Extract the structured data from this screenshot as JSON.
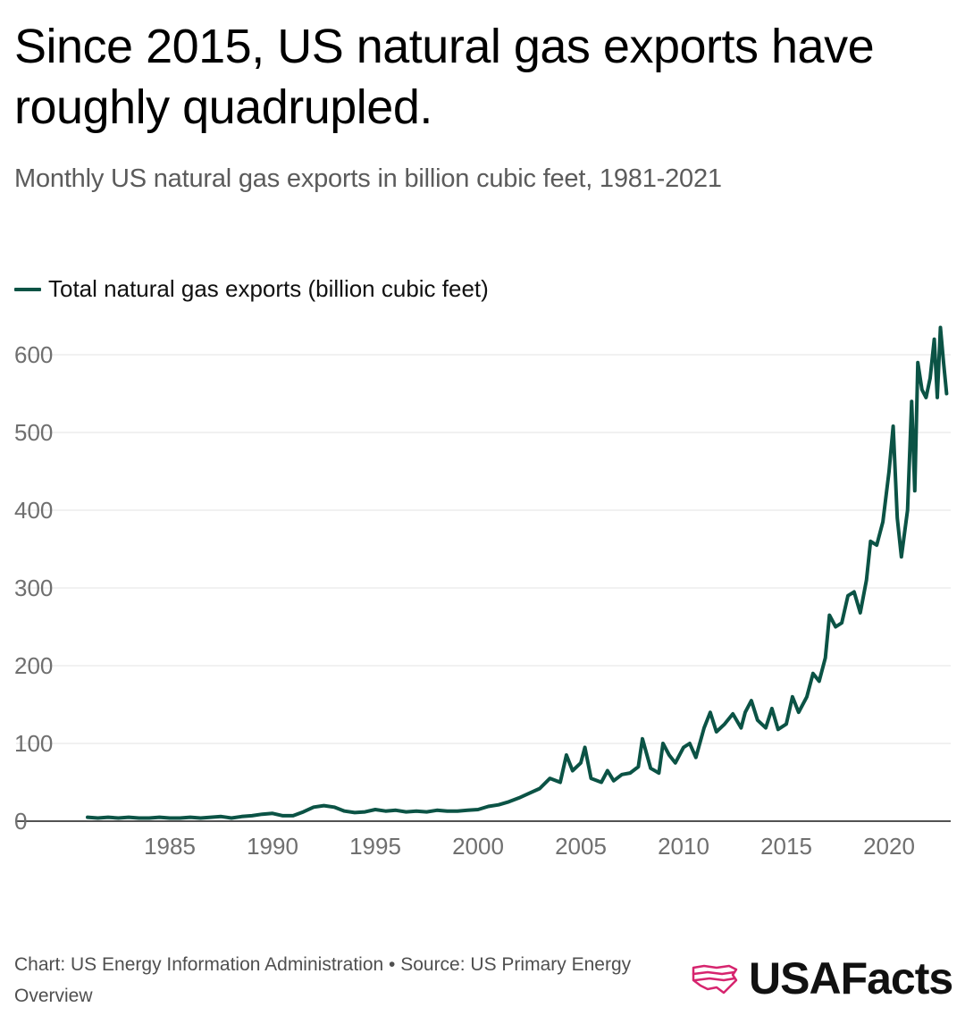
{
  "title": "Since 2015, US natural gas exports have roughly quadrupled.",
  "subtitle": "Monthly US natural gas exports in billion cubic feet, 1981-2021",
  "footer": "Chart: US Energy Information Administration • Source: US Primary Energy Overview",
  "brand": "USAFacts",
  "colors": {
    "line": "#0b5345",
    "grid": "#e3e3e3",
    "tick": "#6f6f6f",
    "logo": "#d6246e"
  },
  "chart_data": {
    "type": "line",
    "series": [
      {
        "name": "Total natural gas exports (billion cubic feet)",
        "points": [
          [
            1981.0,
            5
          ],
          [
            1981.5,
            4
          ],
          [
            1982.0,
            5
          ],
          [
            1982.5,
            4
          ],
          [
            1983.0,
            5
          ],
          [
            1983.5,
            4
          ],
          [
            1984.0,
            4
          ],
          [
            1984.5,
            5
          ],
          [
            1985.0,
            4
          ],
          [
            1985.5,
            4
          ],
          [
            1986.0,
            5
          ],
          [
            1986.5,
            4
          ],
          [
            1987.0,
            5
          ],
          [
            1987.5,
            6
          ],
          [
            1988.0,
            4
          ],
          [
            1988.5,
            6
          ],
          [
            1989.0,
            7
          ],
          [
            1989.5,
            9
          ],
          [
            1990.0,
            10
          ],
          [
            1990.5,
            7
          ],
          [
            1991.0,
            7
          ],
          [
            1991.5,
            12
          ],
          [
            1992.0,
            18
          ],
          [
            1992.5,
            20
          ],
          [
            1993.0,
            18
          ],
          [
            1993.5,
            13
          ],
          [
            1994.0,
            11
          ],
          [
            1994.5,
            12
          ],
          [
            1995.0,
            15
          ],
          [
            1995.5,
            13
          ],
          [
            1996.0,
            14
          ],
          [
            1996.5,
            12
          ],
          [
            1997.0,
            13
          ],
          [
            1997.5,
            12
          ],
          [
            1998.0,
            14
          ],
          [
            1998.5,
            13
          ],
          [
            1999.0,
            13
          ],
          [
            1999.5,
            14
          ],
          [
            2000.0,
            15
          ],
          [
            2000.5,
            19
          ],
          [
            2001.0,
            21
          ],
          [
            2001.5,
            25
          ],
          [
            2002.0,
            30
          ],
          [
            2002.5,
            36
          ],
          [
            2003.0,
            42
          ],
          [
            2003.5,
            55
          ],
          [
            2004.0,
            50
          ],
          [
            2004.3,
            85
          ],
          [
            2004.6,
            65
          ],
          [
            2005.0,
            75
          ],
          [
            2005.2,
            95
          ],
          [
            2005.5,
            55
          ],
          [
            2006.0,
            50
          ],
          [
            2006.3,
            65
          ],
          [
            2006.6,
            52
          ],
          [
            2007.0,
            60
          ],
          [
            2007.4,
            62
          ],
          [
            2007.8,
            70
          ],
          [
            2008.0,
            106
          ],
          [
            2008.4,
            68
          ],
          [
            2008.8,
            62
          ],
          [
            2009.0,
            100
          ],
          [
            2009.3,
            85
          ],
          [
            2009.6,
            75
          ],
          [
            2010.0,
            95
          ],
          [
            2010.3,
            100
          ],
          [
            2010.6,
            82
          ],
          [
            2011.0,
            120
          ],
          [
            2011.3,
            140
          ],
          [
            2011.6,
            115
          ],
          [
            2012.0,
            125
          ],
          [
            2012.4,
            138
          ],
          [
            2012.8,
            120
          ],
          [
            2013.0,
            140
          ],
          [
            2013.3,
            155
          ],
          [
            2013.6,
            130
          ],
          [
            2014.0,
            120
          ],
          [
            2014.3,
            145
          ],
          [
            2014.6,
            118
          ],
          [
            2015.0,
            125
          ],
          [
            2015.3,
            160
          ],
          [
            2015.6,
            140
          ],
          [
            2016.0,
            160
          ],
          [
            2016.3,
            190
          ],
          [
            2016.6,
            180
          ],
          [
            2016.9,
            210
          ],
          [
            2017.1,
            265
          ],
          [
            2017.4,
            250
          ],
          [
            2017.7,
            255
          ],
          [
            2018.0,
            290
          ],
          [
            2018.3,
            295
          ],
          [
            2018.6,
            268
          ],
          [
            2018.9,
            310
          ],
          [
            2019.1,
            360
          ],
          [
            2019.4,
            355
          ],
          [
            2019.7,
            385
          ],
          [
            2020.0,
            450
          ],
          [
            2020.2,
            508
          ],
          [
            2020.4,
            390
          ],
          [
            2020.6,
            340
          ],
          [
            2020.9,
            400
          ],
          [
            2021.1,
            540
          ],
          [
            2021.25,
            425
          ],
          [
            2021.4,
            590
          ],
          [
            2021.6,
            555
          ],
          [
            2021.8,
            545
          ],
          [
            2022.0,
            570
          ],
          [
            2022.2,
            620
          ],
          [
            2022.35,
            545
          ],
          [
            2022.5,
            635
          ],
          [
            2022.65,
            590
          ],
          [
            2022.8,
            550
          ]
        ]
      }
    ],
    "ylim": [
      0,
      600
    ],
    "yticks": [
      0,
      100,
      200,
      300,
      400,
      500,
      600
    ],
    "xlim": [
      1981,
      2023
    ],
    "xticks": [
      1985,
      1990,
      1995,
      2000,
      2005,
      2010,
      2015,
      2020
    ],
    "grid": "horizontal",
    "legend": "top-left"
  }
}
